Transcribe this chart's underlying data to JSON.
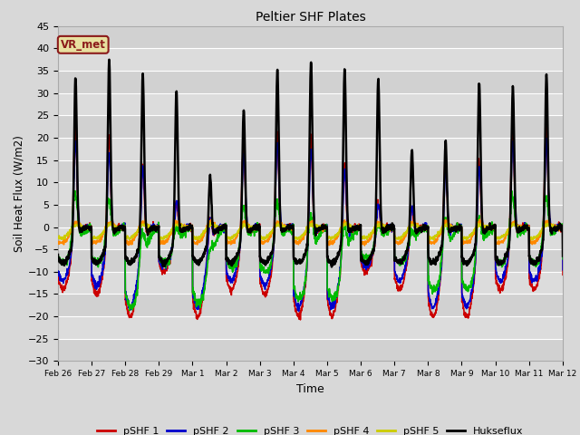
{
  "title": "Peltier SHF Plates",
  "xlabel": "Time",
  "ylabel": "Soil Heat Flux (W/m2)",
  "ylim": [
    -30,
    45
  ],
  "yticks": [
    -30,
    -25,
    -20,
    -15,
    -10,
    -5,
    0,
    5,
    10,
    15,
    20,
    25,
    30,
    35,
    40,
    45
  ],
  "bg_color": "#d8d8d8",
  "plot_bg_color": "#d8d8d8",
  "grid_color": "#ffffff",
  "annotation_text": "VR_met",
  "annotation_bg": "#e8e0a0",
  "annotation_border": "#8b1a1a",
  "series_colors": {
    "pSHF 1": "#cc0000",
    "pSHF 2": "#0000cc",
    "pSHF 3": "#00bb00",
    "pSHF 4": "#ff8800",
    "pSHF 5": "#cccc00",
    "Hukseflux": "#000000"
  },
  "series_linewidths": {
    "pSHF 1": 1.2,
    "pSHF 2": 1.2,
    "pSHF 3": 1.2,
    "pSHF 4": 1.2,
    "pSHF 5": 1.2,
    "Hukseflux": 1.8
  },
  "x_tick_labels": [
    "Feb 26",
    "Feb 27",
    "Feb 28",
    "Feb 29",
    "Mar 1",
    "Mar 2",
    "Mar 3",
    "Mar 4",
    "Mar 5",
    "Mar 6",
    "Mar 7",
    "Mar 8",
    "Mar 9",
    "Mar 10",
    "Mar 11",
    "Mar 12"
  ],
  "n_days": 16,
  "points_per_day": 144,
  "hux_peaks": [
    36,
    40,
    37,
    33,
    14,
    29,
    38,
    40,
    38,
    36,
    20,
    22,
    35,
    34,
    37
  ],
  "pshf1_peaks": [
    26,
    24,
    19,
    8,
    7,
    22,
    25,
    25,
    19,
    8,
    8,
    20,
    20,
    26,
    26
  ],
  "pshf1_trough": [
    -14,
    -15,
    -20,
    -10,
    -20,
    -14,
    -15,
    -20,
    -20,
    -10,
    -14,
    -20,
    -20,
    -14,
    -14
  ],
  "pshf2_peaks": [
    22,
    20,
    18,
    8,
    6,
    19,
    22,
    22,
    17,
    7,
    7,
    17,
    18,
    22,
    22
  ],
  "pshf2_trough": [
    -12,
    -13,
    -18,
    -9,
    -18,
    -12,
    -13,
    -18,
    -18,
    -9,
    -12,
    -18,
    -18,
    -12,
    -12
  ],
  "pshf3_peaks": [
    12,
    10,
    8,
    4,
    3,
    9,
    11,
    11,
    8,
    4,
    3,
    9,
    9,
    11,
    11
  ],
  "pshf3_trough": [
    -8,
    -8,
    -18,
    -8,
    -17,
    -9,
    -10,
    -16,
    -16,
    -7,
    -8,
    -14,
    -14,
    -8,
    -8
  ]
}
